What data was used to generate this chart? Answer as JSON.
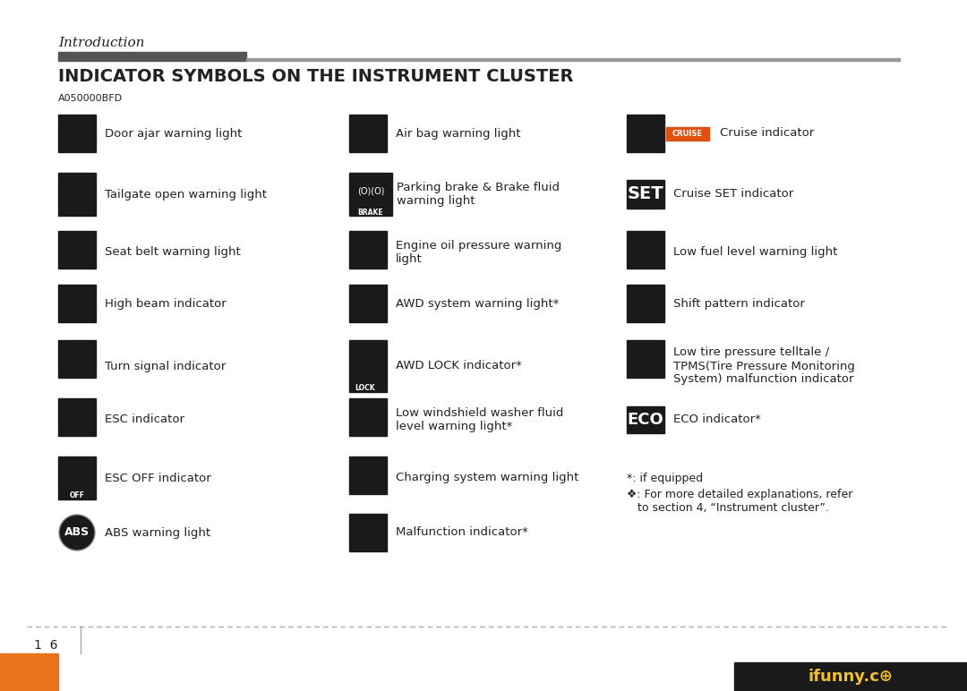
{
  "title_section": "Introduction",
  "main_title": "INDICATOR SYMBOLS ON THE INSTRUMENT CLUSTER",
  "code": "A050000BFD",
  "bg_color": "#ffffff",
  "header_bar_dark": "#555555",
  "header_bar_light": "#999999",
  "icon_bg": "#1a1a1a",
  "text_color": "#222222",
  "rows": [
    {
      "col1_label": "Door ajar warning light",
      "col2_label": "Air bag warning light",
      "col3_label": "Cruise indicator"
    },
    {
      "col1_label": "Tailgate open warning light",
      "col2_label": "Parking brake & Brake fluid\nwarning light",
      "col3_label": "Cruise SET indicator"
    },
    {
      "col1_label": "Seat belt warning light",
      "col2_label": "Engine oil pressure warning\nlight",
      "col3_label": "Low fuel level warning light"
    },
    {
      "col1_label": "High beam indicator",
      "col2_label": "AWD system warning light*",
      "col3_label": "Shift pattern indicator"
    },
    {
      "col1_label": "Turn signal indicator",
      "col2_label": "AWD LOCK indicator*",
      "col3_label": "Low tire pressure telltale /\nTPMS(Tire Pressure Monitoring\nSystem) malfunction indicator"
    },
    {
      "col1_label": "ESC indicator",
      "col2_label": "Low windshield washer fluid\nlevel warning light*",
      "col3_label": "ECO indicator*"
    },
    {
      "col1_label": "ESC OFF indicator",
      "col2_label": "Charging system warning light",
      "col3_label": ""
    },
    {
      "col1_label": "ABS warning light",
      "col2_label": "Malfunction indicator*",
      "col3_label": ""
    }
  ],
  "footnotes": [
    "*: if equipped",
    "❖: For more detailed explanations, refer\n   to section 4, “Instrument cluster”."
  ],
  "page_num": "1  6",
  "orange_color": "#e8731a",
  "ifunny_color": "#f5c518"
}
